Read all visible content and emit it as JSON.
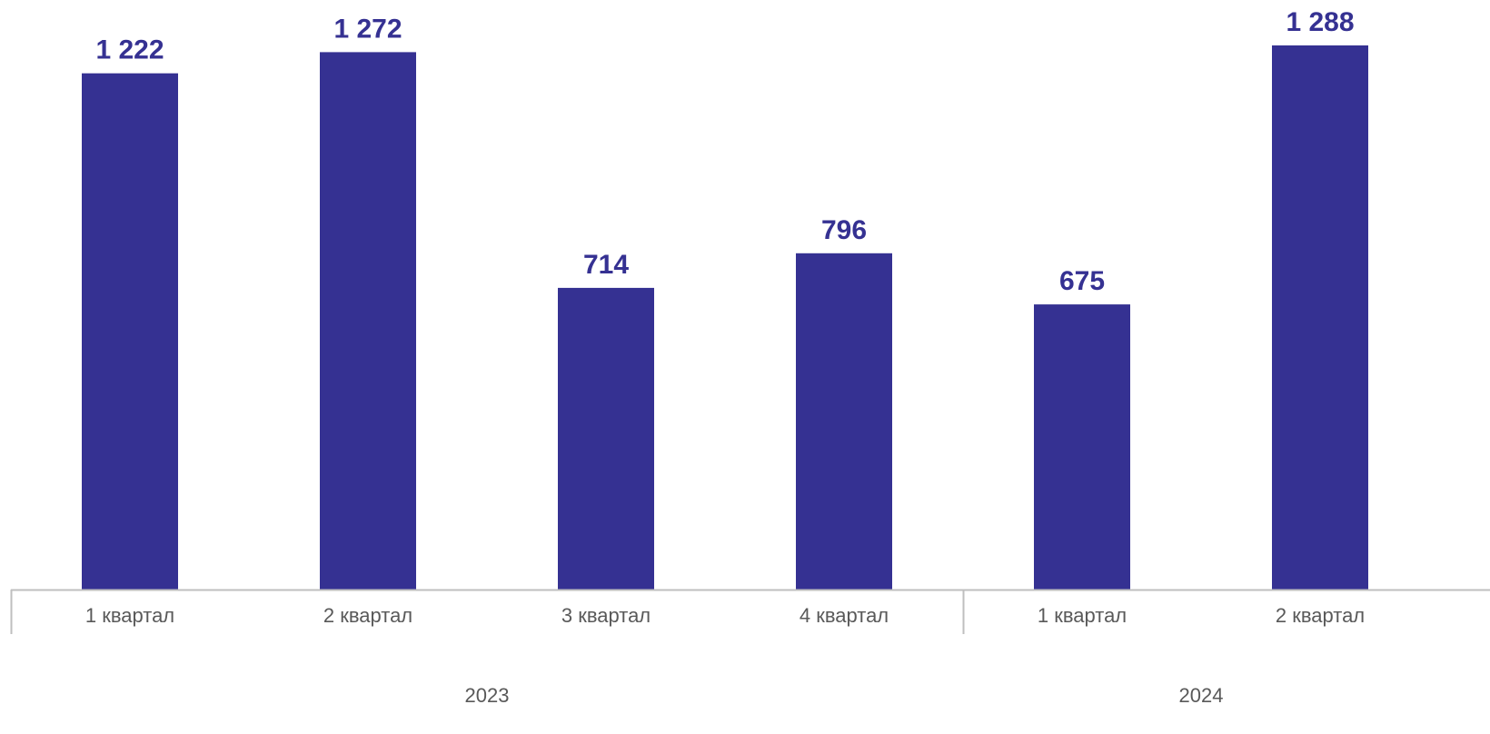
{
  "chart_data": {
    "type": "bar",
    "groups": [
      {
        "label": "2023",
        "categories": [
          "1 квартал",
          "2 квартал",
          "3 квартал",
          "4 квартал"
        ]
      },
      {
        "label": "2024",
        "categories": [
          "1 квартал",
          "2 квартал"
        ]
      }
    ],
    "categories": [
      "1 квартал",
      "2 квартал",
      "3 квартал",
      "4 квартал",
      "1 квартал",
      "2 квартал"
    ],
    "values": [
      1222,
      1272,
      714,
      796,
      675,
      1288
    ],
    "value_labels": [
      "1 222",
      "1 272",
      "714",
      "796",
      "675",
      "1 288"
    ],
    "ylim": [
      0,
      1288
    ],
    "grid": false,
    "legend": "none",
    "title": "",
    "xlabel": "",
    "ylabel": ""
  },
  "colors": {
    "bar": "#353192",
    "value_label": "#353192",
    "axis": "#bfbfbf",
    "tick_label": "#595959",
    "group_label": "#595959"
  }
}
